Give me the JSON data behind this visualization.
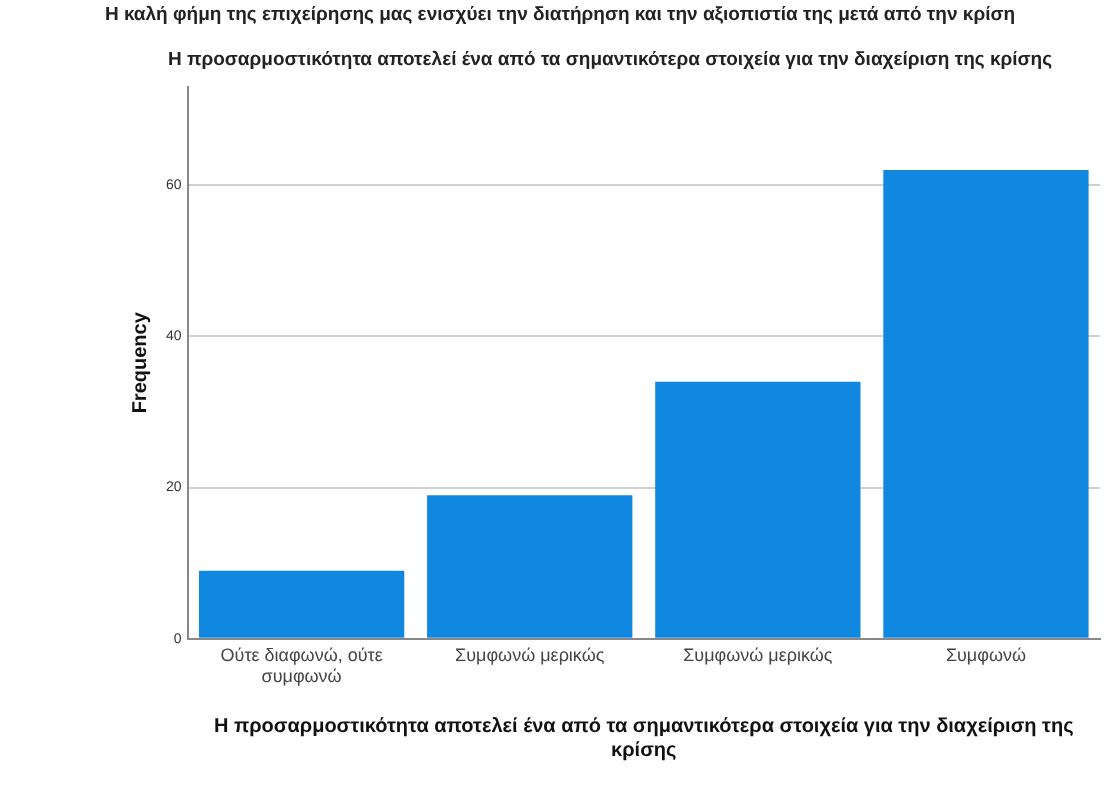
{
  "chart_data": {
    "type": "bar",
    "title": "Η προσαρμοστικότητα αποτελεί ένα από τα σημαντικότερα στοιχεία για την διαχείριση της κρίσης",
    "annotations": [
      "Η καλή φήμη της επιχείρησης μας ενισχύει την διατήρηση και την αξιοπιστία της μετά από την κρίση"
    ],
    "xlabel": "Η προσαρμοστικότητα αποτελεί ένα από τα σημαντικότερα στοιχεία για την διαχείριση της κρίσης",
    "ylabel": "Frequency",
    "categories": [
      "Ούτε διαφωνώ, ούτε συμφωνώ",
      "Συμφωνώ μερικώς",
      "Συμφωνώ μερικώς",
      "Συμφωνώ"
    ],
    "values": [
      9,
      19,
      34,
      62
    ],
    "color": "#1188e0",
    "ylim": [
      0,
      73
    ],
    "yticks": [
      0,
      20,
      40,
      60
    ],
    "grid": "y"
  }
}
